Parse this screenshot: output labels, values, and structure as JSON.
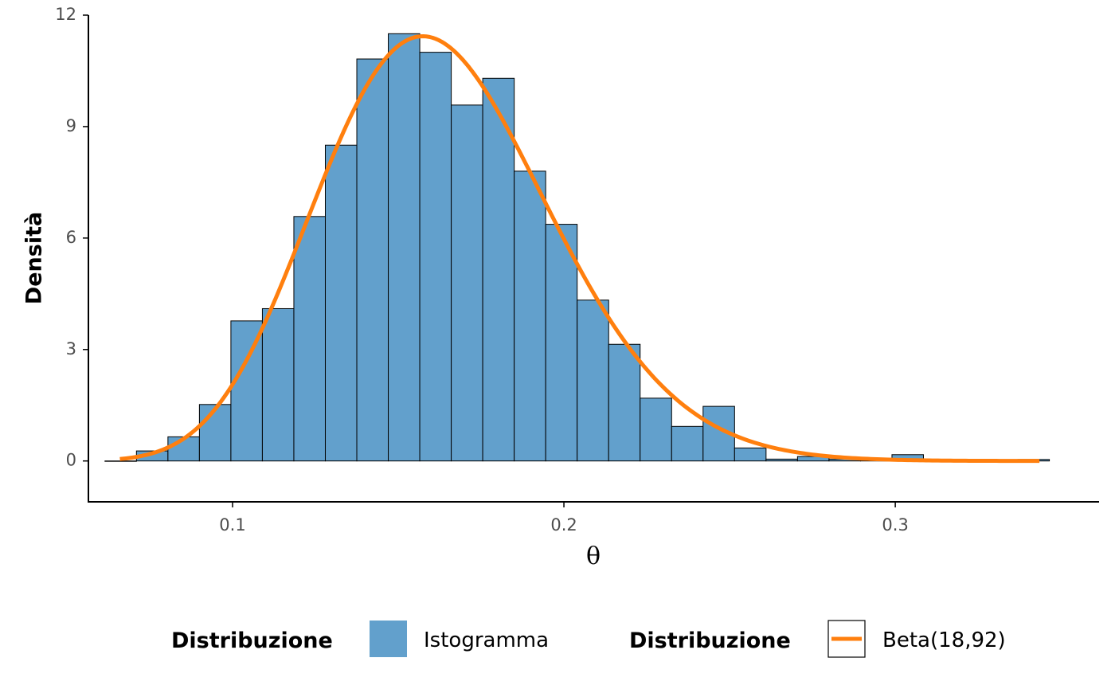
{
  "chart_data": {
    "type": "bar",
    "xlabel": "θ",
    "ylabel": "Densità",
    "xlim": [
      0.0565,
      0.3615
    ],
    "ylim": [
      -1.1,
      12.0
    ],
    "x_ticks": [
      0.1,
      0.2,
      0.3
    ],
    "x_tick_labels": [
      "0.1",
      "0.2",
      "0.3"
    ],
    "y_ticks": [
      0,
      3,
      6,
      9,
      12
    ],
    "y_tick_labels": [
      "0",
      "3",
      "6",
      "9",
      "12"
    ],
    "grid": false,
    "legend_position": "bottom",
    "histogram": {
      "name": "Istogramma",
      "color": "#62a0cc",
      "edge_color": "#000000",
      "bins": [
        {
          "x0": 0.0615,
          "x1": 0.071,
          "density": 0.0
        },
        {
          "x0": 0.071,
          "x1": 0.0805,
          "density": 0.27
        },
        {
          "x0": 0.0805,
          "x1": 0.09,
          "density": 0.65
        },
        {
          "x0": 0.09,
          "x1": 0.0995,
          "density": 1.52
        },
        {
          "x0": 0.0995,
          "x1": 0.109,
          "density": 3.77
        },
        {
          "x0": 0.109,
          "x1": 0.1185,
          "density": 4.1
        },
        {
          "x0": 0.1185,
          "x1": 0.128,
          "density": 6.58
        },
        {
          "x0": 0.128,
          "x1": 0.1375,
          "density": 8.5
        },
        {
          "x0": 0.1375,
          "x1": 0.147,
          "density": 10.82
        },
        {
          "x0": 0.147,
          "x1": 0.1565,
          "density": 11.5
        },
        {
          "x0": 0.1565,
          "x1": 0.166,
          "density": 11.0
        },
        {
          "x0": 0.166,
          "x1": 0.1755,
          "density": 9.58
        },
        {
          "x0": 0.1755,
          "x1": 0.185,
          "density": 10.3
        },
        {
          "x0": 0.185,
          "x1": 0.1945,
          "density": 7.8
        },
        {
          "x0": 0.1945,
          "x1": 0.204,
          "density": 6.37
        },
        {
          "x0": 0.204,
          "x1": 0.2135,
          "density": 4.33
        },
        {
          "x0": 0.2135,
          "x1": 0.223,
          "density": 3.14
        },
        {
          "x0": 0.223,
          "x1": 0.2325,
          "density": 1.69
        },
        {
          "x0": 0.2325,
          "x1": 0.242,
          "density": 0.93
        },
        {
          "x0": 0.242,
          "x1": 0.2515,
          "density": 1.47
        },
        {
          "x0": 0.2515,
          "x1": 0.261,
          "density": 0.35
        },
        {
          "x0": 0.261,
          "x1": 0.2705,
          "density": 0.05
        },
        {
          "x0": 0.2705,
          "x1": 0.28,
          "density": 0.12
        },
        {
          "x0": 0.28,
          "x1": 0.2895,
          "density": 0.05
        },
        {
          "x0": 0.2895,
          "x1": 0.299,
          "density": 0.04
        },
        {
          "x0": 0.299,
          "x1": 0.3085,
          "density": 0.17
        },
        {
          "x0": 0.3085,
          "x1": 0.318,
          "density": 0.0
        },
        {
          "x0": 0.318,
          "x1": 0.3275,
          "density": 0.0
        },
        {
          "x0": 0.3275,
          "x1": 0.337,
          "density": 0.0
        },
        {
          "x0": 0.337,
          "x1": 0.3465,
          "density": 0.04
        }
      ]
    },
    "curve": {
      "name": "Beta(18,92)",
      "color": "#ff7f0e",
      "distribution": "beta",
      "alpha": 18,
      "beta": 92,
      "x_range": [
        0.066,
        0.3435
      ]
    },
    "legend": [
      {
        "title": "Distribuzione",
        "label": "Istogramma",
        "kind": "fill",
        "color": "#62a0cc"
      },
      {
        "title": "Distribuzione",
        "label": "Beta(18,92)",
        "kind": "line",
        "color": "#ff7f0e"
      }
    ]
  }
}
